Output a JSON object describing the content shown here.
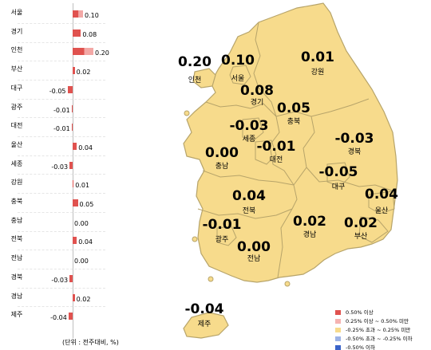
{
  "bar_chart": {
    "unit_note": "(단위 : 전주대비, %)",
    "regions": [
      {
        "name": "서울",
        "value": 0.1,
        "label": "0.10"
      },
      {
        "name": "경기",
        "value": 0.08,
        "label": "0.08"
      },
      {
        "name": "인천",
        "value": 0.2,
        "label": "0.20"
      },
      {
        "name": "부산",
        "value": 0.02,
        "label": "0.02"
      },
      {
        "name": "대구",
        "value": -0.05,
        "label": "-0.05"
      },
      {
        "name": "광주",
        "value": -0.01,
        "label": "-0.01"
      },
      {
        "name": "대전",
        "value": -0.01,
        "label": "-0.01"
      },
      {
        "name": "울산",
        "value": 0.04,
        "label": "0.04"
      },
      {
        "name": "세종",
        "value": -0.03,
        "label": "-0.03"
      },
      {
        "name": "강원",
        "value": 0.01,
        "label": "0.01"
      },
      {
        "name": "충북",
        "value": 0.05,
        "label": "0.05"
      },
      {
        "name": "충남",
        "value": 0.0,
        "label": "0.00"
      },
      {
        "name": "전북",
        "value": 0.04,
        "label": "0.04"
      },
      {
        "name": "전남",
        "value": 0.0,
        "label": "0.00"
      },
      {
        "name": "경북",
        "value": -0.03,
        "label": "-0.03"
      },
      {
        "name": "경남",
        "value": 0.02,
        "label": "0.02"
      },
      {
        "name": "제주",
        "value": -0.04,
        "label": "-0.04"
      }
    ]
  },
  "chart_data": {
    "type": "bar",
    "orientation": "horizontal",
    "categories": [
      "서울",
      "경기",
      "인천",
      "부산",
      "대구",
      "광주",
      "대전",
      "울산",
      "세종",
      "강원",
      "충북",
      "충남",
      "전북",
      "전남",
      "경북",
      "경남",
      "제주"
    ],
    "values": [
      0.1,
      0.08,
      0.2,
      0.02,
      -0.05,
      -0.01,
      -0.01,
      0.04,
      -0.03,
      0.01,
      0.05,
      0.0,
      0.04,
      0.0,
      -0.03,
      0.02,
      -0.04
    ],
    "xlabel": "(단위 : 전주대비, %)",
    "xlim": [
      -0.05,
      0.2
    ],
    "grid": false
  },
  "map": {
    "regions": [
      {
        "name": "인천",
        "value": "0.20"
      },
      {
        "name": "서울",
        "value": "0.10"
      },
      {
        "name": "강원",
        "value": "0.01"
      },
      {
        "name": "경기",
        "value": "0.08"
      },
      {
        "name": "충북",
        "value": "0.05"
      },
      {
        "name": "세종",
        "value": "-0.03"
      },
      {
        "name": "경북",
        "value": "-0.03"
      },
      {
        "name": "충남",
        "value": "0.00"
      },
      {
        "name": "대전",
        "value": "-0.01"
      },
      {
        "name": "대구",
        "value": "-0.05"
      },
      {
        "name": "울산",
        "value": "0.04"
      },
      {
        "name": "전북",
        "value": "0.04"
      },
      {
        "name": "광주",
        "value": "-0.01"
      },
      {
        "name": "경남",
        "value": "0.02"
      },
      {
        "name": "부산",
        "value": "0.02"
      },
      {
        "name": "전남",
        "value": "0.00"
      },
      {
        "name": "제주",
        "value": "-0.04"
      }
    ]
  },
  "legend": {
    "items": [
      {
        "label": "0.50% 이상",
        "color": "#e0524f"
      },
      {
        "label": "0.25% 이상 ~ 0.50% 미만",
        "color": "#f5b3b1"
      },
      {
        "label": "-0.25% 초과 ~ 0.25% 미만",
        "color": "#f7db8c"
      },
      {
        "label": "-0.50% 초과 ~ -0.25% 이하",
        "color": "#9db3e6"
      },
      {
        "label": "-0.50% 이하",
        "color": "#3a63c9"
      }
    ]
  },
  "colors": {
    "positive_bar": "#e0524f",
    "positive_bar_light": "#f3a8a6",
    "negative_bar": "#e0524f",
    "map_fill": "#f7db8c",
    "map_border": "#b7a46a"
  }
}
